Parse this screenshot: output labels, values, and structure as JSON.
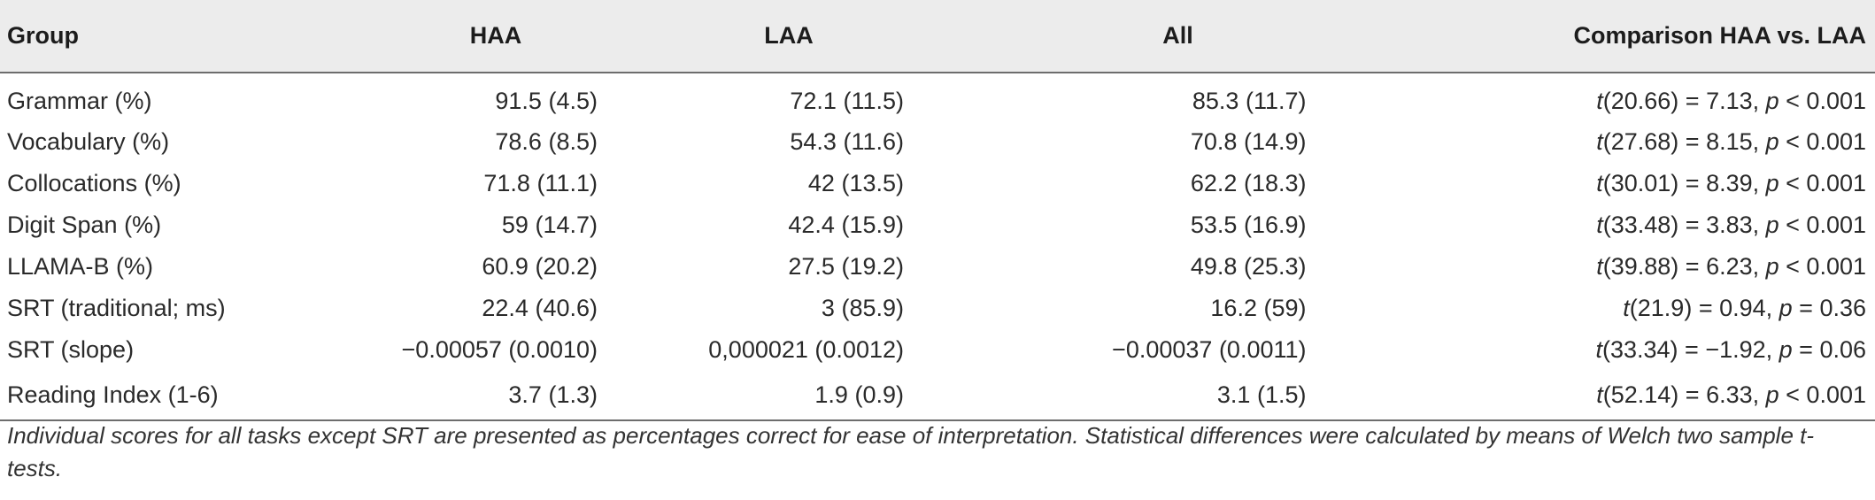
{
  "table": {
    "headers": {
      "group": "Group",
      "haa": "HAA",
      "laa": "LAA",
      "all": "All",
      "comparison": "Comparison HAA vs. LAA"
    },
    "rows": [
      {
        "group": "Grammar (%)",
        "haa_v": "91.5",
        "haa_sd": "(4.5)",
        "laa_v": "72.1",
        "laa_sd": "(11.5)",
        "all_v": "85.3",
        "all_sd": "(11.7)",
        "t": "t",
        "df": "(20.66) = 7.13, ",
        "p": "p",
        "p_rest": " < 0.001"
      },
      {
        "group": "Vocabulary (%)",
        "haa_v": "78.6",
        "haa_sd": "(8.5)",
        "laa_v": "54.3",
        "laa_sd": "(11.6)",
        "all_v": "70.8",
        "all_sd": "(14.9)",
        "t": "t",
        "df": "(27.68) = 8.15, ",
        "p": "p",
        "p_rest": " < 0.001"
      },
      {
        "group": "Collocations (%)",
        "haa_v": "71.8",
        "haa_sd": "(11.1)",
        "laa_v": "42",
        "laa_sd": "(13.5)",
        "all_v": "62.2",
        "all_sd": "(18.3)",
        "t": "t",
        "df": "(30.01) = 8.39, ",
        "p": "p",
        "p_rest": " < 0.001"
      },
      {
        "group": "Digit Span (%)",
        "haa_v": "59",
        "haa_sd": "(14.7)",
        "laa_v": "42.4",
        "laa_sd": "(15.9)",
        "all_v": "53.5",
        "all_sd": "(16.9)",
        "t": "t",
        "df": "(33.48) = 3.83, ",
        "p": "p",
        "p_rest": " < 0.001"
      },
      {
        "group": "LLAMA-B (%)",
        "haa_v": "60.9",
        "haa_sd": "(20.2)",
        "laa_v": "27.5",
        "laa_sd": "(19.2)",
        "all_v": "49.8",
        "all_sd": "(25.3)",
        "t": "t",
        "df": "(39.88) = 6.23, ",
        "p": "p",
        "p_rest": " < 0.001"
      },
      {
        "group": "SRT (traditional; ms)",
        "haa_v": "22.4",
        "haa_sd": "(40.6)",
        "laa_v": "3",
        "laa_sd": "(85.9)",
        "all_v": "16.2",
        "all_sd": "(59)",
        "t": "t",
        "df": "(21.9) = 0.94, ",
        "p": "p",
        "p_rest": " = 0.36"
      },
      {
        "group": "SRT (slope)",
        "haa_v": "−0.00057",
        "haa_sd": "(0.0010)",
        "laa_v": "0,000021",
        "laa_sd": "(0.0012)",
        "all_v": "−0.00037",
        "all_sd": "(0.0011)",
        "t": "t",
        "df": "(33.34) = −1.92, ",
        "p": "p",
        "p_rest": " = 0.06"
      },
      {
        "group": "Reading Index (1-6)",
        "haa_v": "3.7",
        "haa_sd": "(1.3)",
        "laa_v": "1.9",
        "laa_sd": "(0.9)",
        "all_v": "3.1",
        "all_sd": "(1.5)",
        "t": "t",
        "df": "(52.14) = 6.33, ",
        "p": "p",
        "p_rest": " < 0.001"
      }
    ],
    "note": "Individual scores for all tasks except SRT are presented as percentages correct for ease of interpretation. Statistical differences were calculated by means of Welch two sample t-tests."
  }
}
